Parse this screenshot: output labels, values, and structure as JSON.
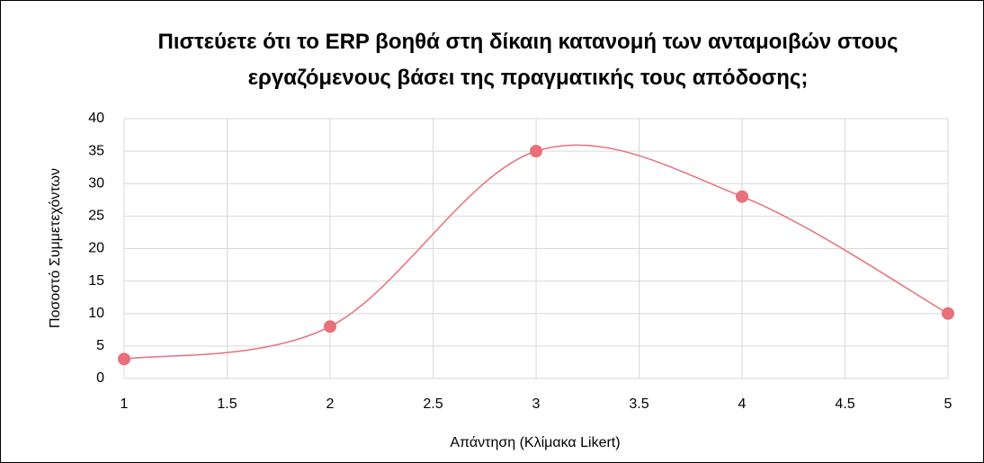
{
  "chart_data": {
    "type": "scatter",
    "title": "Πιστεύετε ότι το ERP βοηθά στη δίκαιη κατανομή των ανταμοιβών στους εργαζόμενους βάσει της πραγματικής τους απόδοσης;",
    "x_label": "Απάντηση (Κλίμακα Likert)",
    "y_label": "Ποσοστό Συμμετεχόντων",
    "x": [
      1,
      2,
      3,
      4,
      5
    ],
    "series": [
      {
        "color": "#e8707a",
        "values": [
          3,
          8,
          35,
          28,
          10
        ]
      }
    ],
    "xlim": [
      1,
      5
    ],
    "xticks": [
      1,
      1.5,
      2,
      2.5,
      3,
      3.5,
      4,
      4.5,
      5
    ],
    "ylim": [
      0,
      40
    ],
    "yticks": [
      0,
      5,
      10,
      15,
      20,
      25,
      30,
      35,
      40
    ],
    "grid": true,
    "smooth": true
  }
}
